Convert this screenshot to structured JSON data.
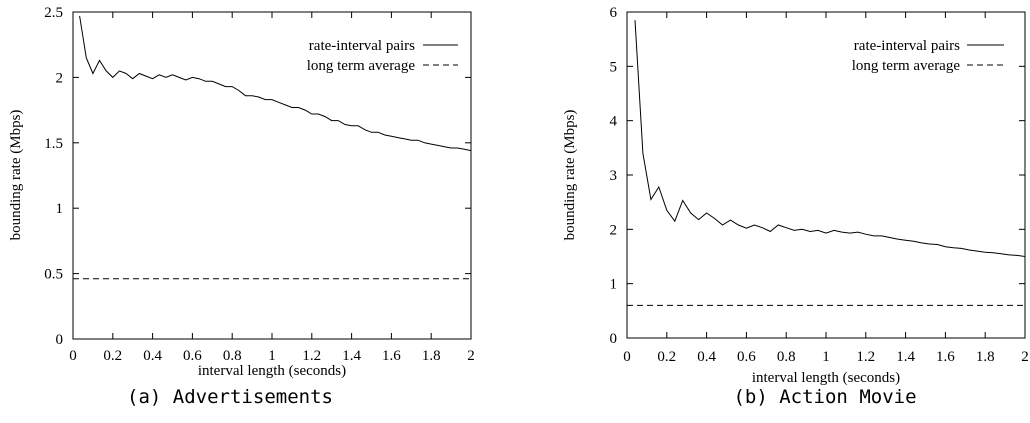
{
  "chart_data": [
    {
      "type": "line",
      "caption": "(a) Advertisements",
      "xlabel": "interval length (seconds)",
      "ylabel": "bounding rate (Mbps)",
      "xlim": [
        0,
        2
      ],
      "ylim": [
        0,
        2.5
      ],
      "xticks": [
        "0",
        "0.2",
        "0.4",
        "0.6",
        "0.8",
        "1",
        "1.2",
        "1.4",
        "1.6",
        "1.8",
        "2"
      ],
      "yticks": [
        "0",
        "0.5",
        "1",
        "1.5",
        "2",
        "2.5"
      ],
      "legend_position": "top-right",
      "grid": false,
      "series": [
        {
          "name": "rate-interval pairs",
          "style": "solid",
          "x": [
            0.033,
            0.067,
            0.1,
            0.133,
            0.167,
            0.2,
            0.233,
            0.267,
            0.3,
            0.333,
            0.367,
            0.4,
            0.433,
            0.467,
            0.5,
            0.533,
            0.567,
            0.6,
            0.633,
            0.667,
            0.7,
            0.733,
            0.767,
            0.8,
            0.833,
            0.867,
            0.9,
            0.933,
            0.967,
            1.0,
            1.033,
            1.067,
            1.1,
            1.133,
            1.167,
            1.2,
            1.233,
            1.267,
            1.3,
            1.333,
            1.367,
            1.4,
            1.433,
            1.467,
            1.5,
            1.533,
            1.567,
            1.6,
            1.633,
            1.667,
            1.7,
            1.733,
            1.767,
            1.8,
            1.833,
            1.867,
            1.9,
            1.933,
            1.967,
            2.0
          ],
          "y": [
            2.47,
            2.15,
            2.03,
            2.13,
            2.05,
            2.0,
            2.05,
            2.03,
            1.99,
            2.03,
            2.01,
            1.99,
            2.02,
            2.0,
            2.02,
            2.0,
            1.98,
            2.0,
            1.99,
            1.97,
            1.97,
            1.95,
            1.93,
            1.93,
            1.9,
            1.86,
            1.86,
            1.85,
            1.83,
            1.83,
            1.81,
            1.79,
            1.77,
            1.77,
            1.75,
            1.72,
            1.72,
            1.7,
            1.67,
            1.67,
            1.64,
            1.63,
            1.63,
            1.6,
            1.58,
            1.58,
            1.56,
            1.55,
            1.54,
            1.53,
            1.52,
            1.52,
            1.5,
            1.49,
            1.48,
            1.47,
            1.46,
            1.46,
            1.45,
            1.44
          ]
        },
        {
          "name": "long term average",
          "style": "dashed",
          "x": [
            0,
            2
          ],
          "y": [
            0.46,
            0.46
          ]
        }
      ]
    },
    {
      "type": "line",
      "caption": "(b) Action Movie",
      "xlabel": "interval length (seconds)",
      "ylabel": "bounding rate (Mbps)",
      "xlim": [
        0,
        2
      ],
      "ylim": [
        0,
        6
      ],
      "xticks": [
        "0",
        "0.2",
        "0.4",
        "0.6",
        "0.8",
        "1",
        "1.2",
        "1.4",
        "1.6",
        "1.8",
        "2"
      ],
      "yticks": [
        "0",
        "1",
        "2",
        "3",
        "4",
        "5",
        "6"
      ],
      "legend_position": "top-right",
      "grid": false,
      "series": [
        {
          "name": "rate-interval pairs",
          "style": "solid",
          "x": [
            0.04,
            0.08,
            0.12,
            0.16,
            0.2,
            0.24,
            0.28,
            0.32,
            0.36,
            0.4,
            0.44,
            0.48,
            0.52,
            0.56,
            0.6,
            0.64,
            0.68,
            0.72,
            0.76,
            0.8,
            0.84,
            0.88,
            0.92,
            0.96,
            1.0,
            1.04,
            1.08,
            1.12,
            1.16,
            1.2,
            1.24,
            1.28,
            1.32,
            1.36,
            1.4,
            1.44,
            1.48,
            1.52,
            1.56,
            1.6,
            1.64,
            1.68,
            1.72,
            1.76,
            1.8,
            1.84,
            1.88,
            1.92,
            1.96,
            2.0
          ],
          "y": [
            5.85,
            3.4,
            2.55,
            2.78,
            2.35,
            2.15,
            2.53,
            2.3,
            2.18,
            2.3,
            2.2,
            2.08,
            2.17,
            2.08,
            2.02,
            2.08,
            2.03,
            1.96,
            2.08,
            2.03,
            1.98,
            2.0,
            1.96,
            1.98,
            1.93,
            1.98,
            1.95,
            1.93,
            1.95,
            1.91,
            1.88,
            1.88,
            1.85,
            1.82,
            1.8,
            1.78,
            1.75,
            1.73,
            1.72,
            1.68,
            1.66,
            1.65,
            1.62,
            1.6,
            1.58,
            1.57,
            1.55,
            1.53,
            1.52,
            1.5
          ]
        },
        {
          "name": "long term average",
          "style": "dashed",
          "x": [
            0,
            2
          ],
          "y": [
            0.6,
            0.6
          ]
        }
      ]
    }
  ]
}
